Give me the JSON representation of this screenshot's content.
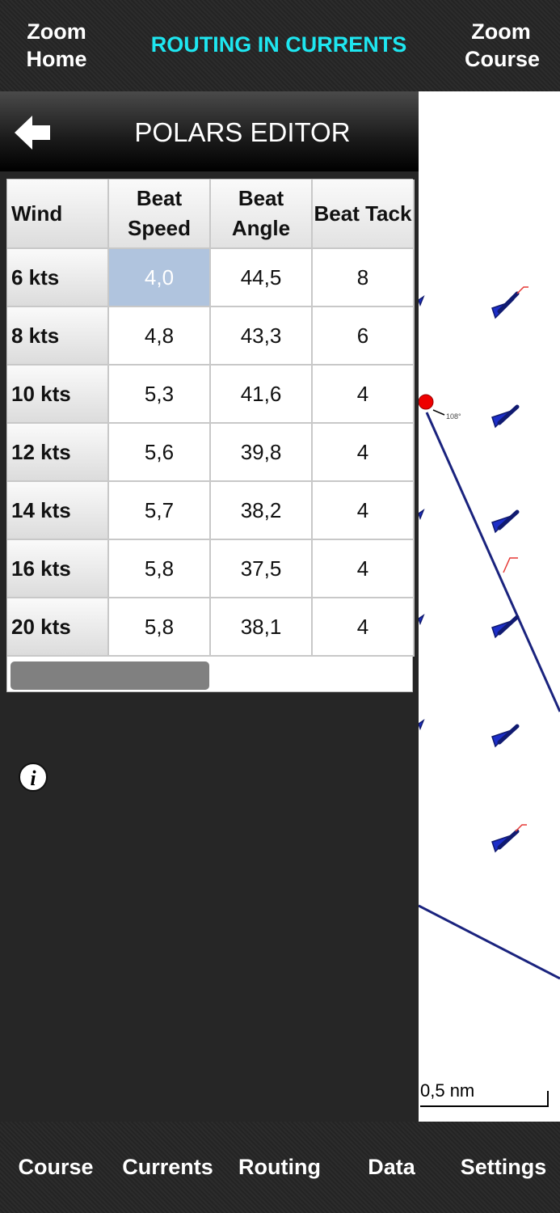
{
  "header": {
    "left": "Zoom Home",
    "title": "ROUTING IN CURRENTS",
    "right": "Zoom Course"
  },
  "panel": {
    "title": "POLARS EDITOR"
  },
  "table": {
    "columns": [
      "Wind",
      "Beat Speed",
      "Beat Angle",
      "Beat Tack"
    ],
    "rows": [
      [
        "6 kts",
        "4,0",
        "44,5",
        "8"
      ],
      [
        "8 kts",
        "4,8",
        "43,3",
        "6"
      ],
      [
        "10 kts",
        "5,3",
        "41,6",
        "4"
      ],
      [
        "12 kts",
        "5,6",
        "39,8",
        "4"
      ],
      [
        "14 kts",
        "5,7",
        "38,2",
        "4"
      ],
      [
        "16 kts",
        "5,8",
        "37,5",
        "4"
      ],
      [
        "20 kts",
        "5,8",
        "38,1",
        "4"
      ]
    ]
  },
  "map": {
    "heading_label": "108°",
    "scale": "0,5 nm"
  },
  "tabs": [
    "Course",
    "Currents",
    "Routing",
    "Data",
    "Settings"
  ]
}
